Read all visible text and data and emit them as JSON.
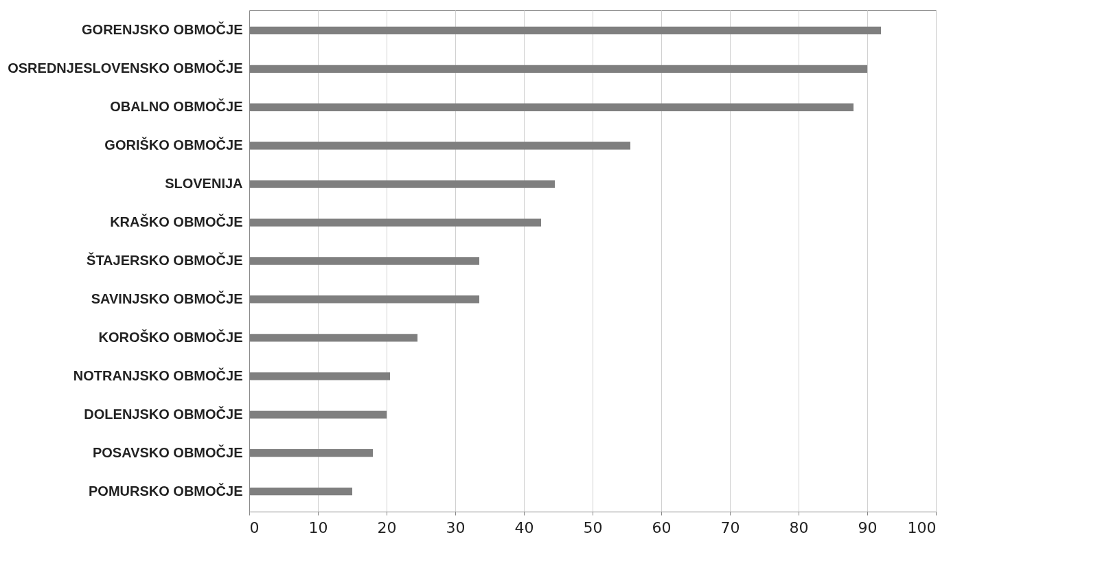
{
  "chart_data": {
    "type": "bar",
    "orientation": "horizontal",
    "categories": [
      "GORENJSKO OBMOČJE",
      "OSREDNJESLOVENSKO OBMOČJE",
      "OBALNO OBMOČJE",
      "GORIŠKO OBMOČJE",
      "SLOVENIJA",
      "KRAŠKO OBMOČJE",
      "ŠTAJERSKO OBMOČJE",
      "SAVINJSKO OBMOČJE",
      "KOROŠKO OBMOČJE",
      "NOTRANJSKO OBMOČJE",
      "DOLENJSKO OBMOČJE",
      "POSAVSKO  OBMOČJE",
      "POMURSKO OBMOČJE"
    ],
    "values": [
      92,
      90,
      88,
      55.5,
      44.5,
      42.5,
      33.5,
      33.5,
      24.5,
      20.5,
      20,
      18,
      15
    ],
    "color": "#7f7f7f",
    "xlim": [
      0,
      100
    ],
    "xticks": [
      0,
      10,
      20,
      30,
      40,
      50,
      60,
      70,
      80,
      90,
      100
    ],
    "grid": "x"
  }
}
